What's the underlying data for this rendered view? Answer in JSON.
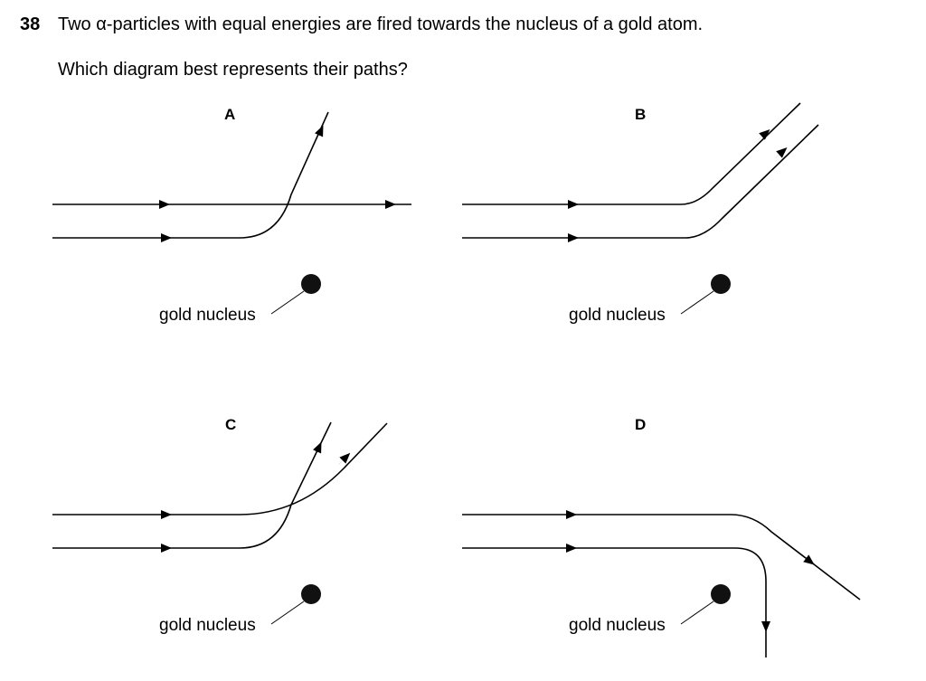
{
  "question": {
    "number": "38",
    "text": "Two α-particles with equal energies are fired towards the nucleus of a gold atom.",
    "prompt": "Which diagram best represents their paths?"
  },
  "options": [
    {
      "label": "A",
      "nucleus_label": "gold nucleus"
    },
    {
      "label": "B",
      "nucleus_label": "gold nucleus"
    },
    {
      "label": "C",
      "nucleus_label": "gold nucleus"
    },
    {
      "label": "D",
      "nucleus_label": "gold nucleus"
    }
  ]
}
